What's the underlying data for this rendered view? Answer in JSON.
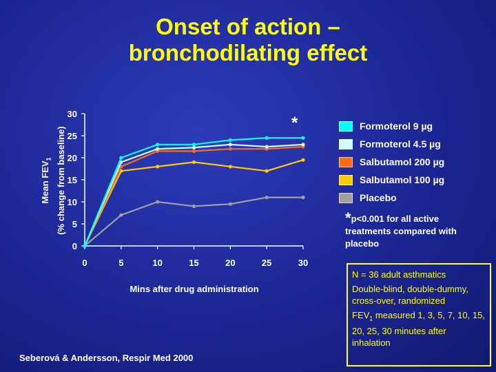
{
  "slide": {
    "title_line1": "Onset of action –",
    "title_line2": "bronchodilating effect",
    "significance_marker": "*",
    "significance_text": "p<0.001 for all active treatments compared with placebo",
    "info_box": {
      "line1": "N = 36 adult asthmatics",
      "line2": "Double-blind, double-dummy, cross-over, randomized",
      "line3_prefix": "FEV",
      "line3_sub": "1",
      "line3_suffix": " measured 1, 3, 5, 7, 10, 15, 20, 25, 30 minutes after inhalation"
    },
    "citation": "Seberová & Andersson, Respir Med 2000",
    "colors": {
      "title": "#ffff00",
      "background": "#1c2694",
      "info_box_border": "#ffff33"
    }
  },
  "chart_data": {
    "type": "line",
    "title": "",
    "xlabel": "Mins after drug administration",
    "ylabel_line1_prefix": "Mean FEV",
    "ylabel_line1_sub": "1",
    "ylabel_line2": "(% change from baseline)",
    "xlim": [
      0,
      30
    ],
    "ylim": [
      0,
      30
    ],
    "xticks": [
      0,
      5,
      10,
      15,
      20,
      25,
      30
    ],
    "yticks": [
      0,
      5,
      10,
      15,
      20,
      25,
      30
    ],
    "grid": false,
    "legend_position": "right",
    "x": [
      0,
      5,
      10,
      15,
      20,
      25,
      30
    ],
    "series": [
      {
        "name": "Formoterol 9 µg",
        "color": "#00ffff",
        "values": [
          0,
          20,
          23,
          23,
          24,
          24.5,
          24.5
        ]
      },
      {
        "name": "Formoterol 4.5 µg",
        "color": "#ccffff",
        "values": [
          0,
          19,
          22,
          22.3,
          23,
          22.5,
          23
        ]
      },
      {
        "name": "Salbutamol 200 µg",
        "color": "#ff6a1a",
        "values": [
          0,
          18,
          21.5,
          21.5,
          22,
          22,
          22.5
        ]
      },
      {
        "name": "Salbutamol 100 µg",
        "color": "#ffcc00",
        "values": [
          0,
          17,
          18,
          19,
          18,
          17,
          19.5
        ]
      },
      {
        "name": "Placebo",
        "color": "#a0a0a0",
        "values": [
          0,
          7,
          10,
          9,
          9.5,
          11,
          11
        ]
      }
    ]
  }
}
